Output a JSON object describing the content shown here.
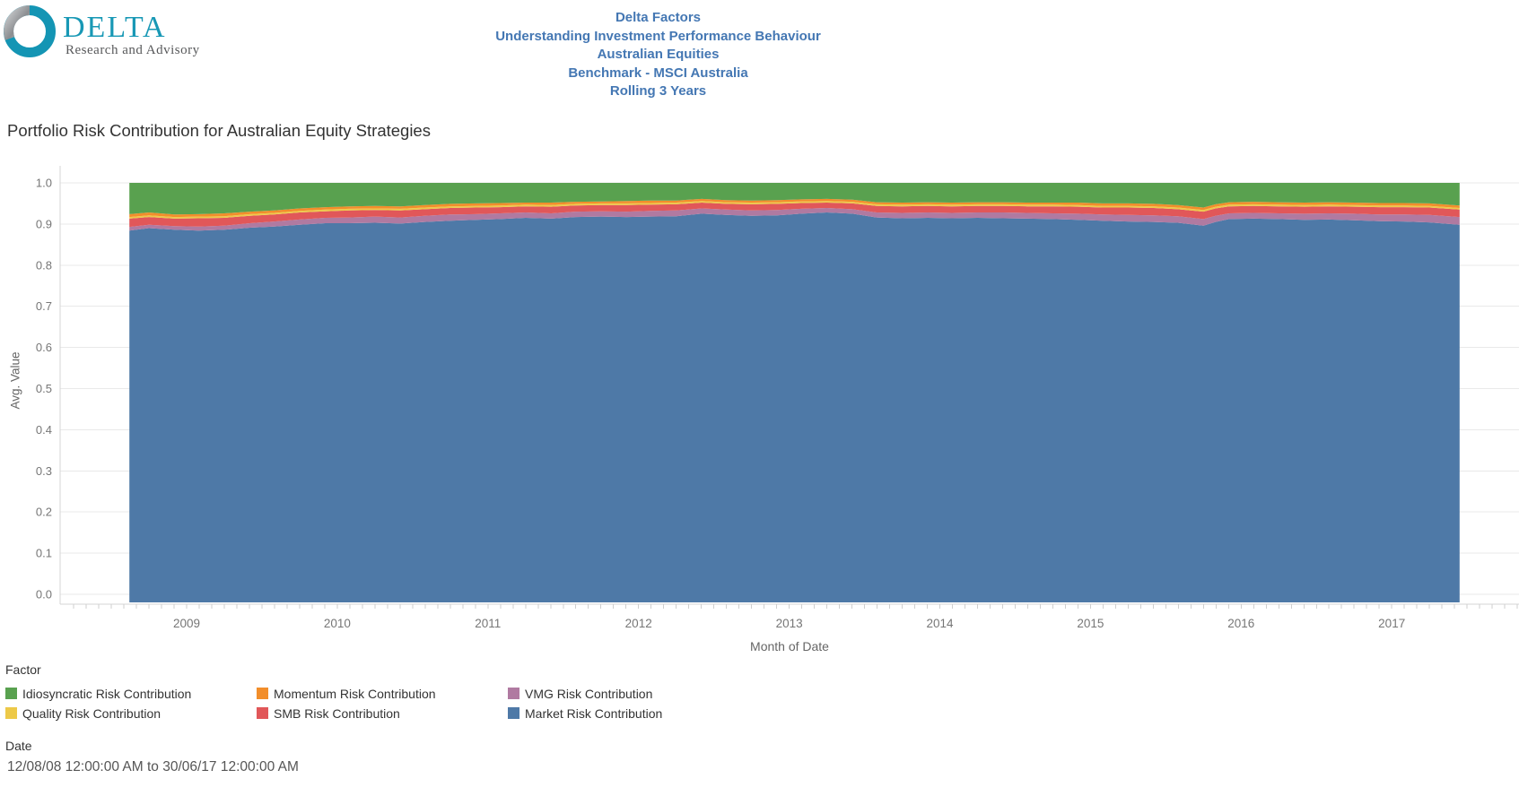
{
  "logo": {
    "brand": "DELTA",
    "tagline": "Research and Advisory",
    "teal": "#1898b5",
    "gray": "#97999c"
  },
  "header": {
    "lines": [
      "Delta Factors",
      "Understanding Investment Performance Behaviour",
      "Australian Equities",
      "Benchmark - MSCI Australia",
      "Rolling 3 Years"
    ],
    "color": "#4477b3"
  },
  "chart": {
    "title": "Portfolio Risk Contribution for Australian Equity Strategies",
    "y_axis_label": "Avg. Value",
    "x_axis_label": "Month of Date"
  },
  "legend": {
    "title": "Factor",
    "items": [
      {
        "label": "Idiosyncratic Risk Contribution",
        "color": "#59a14f"
      },
      {
        "label": "Momentum Risk Contribution",
        "color": "#f28e2b"
      },
      {
        "label": "VMG Risk Contribution",
        "color": "#b07aa1"
      },
      {
        "label": "Quality Risk Contribution",
        "color": "#edc948"
      },
      {
        "label": "SMB Risk Contribution",
        "color": "#e15759"
      },
      {
        "label": "Market Risk Contribution",
        "color": "#4e79a7"
      }
    ]
  },
  "date_filter": {
    "title": "Date",
    "value": "12/08/08 12:00:00 AM to 30/06/17 12:00:00 AM"
  },
  "chart_data": {
    "type": "area",
    "stacked": true,
    "normalized": true,
    "title": "Portfolio Risk Contribution for Australian Equity Strategies",
    "xlabel": "Month of Date",
    "ylabel": "Avg. Value",
    "ylim": [
      0.0,
      1.0
    ],
    "xlim": [
      2008.2,
      2017.8
    ],
    "grid": true,
    "legend_position": "bottom",
    "yticks": [
      "0.0",
      "0.1",
      "0.2",
      "0.3",
      "0.4",
      "0.5",
      "0.6",
      "0.7",
      "0.8",
      "0.9",
      "1.0"
    ],
    "xticks": [
      2009,
      2010,
      2011,
      2012,
      2013,
      2014,
      2015,
      2016,
      2017
    ],
    "x": [
      2008.62,
      2008.75,
      2008.92,
      2009.08,
      2009.25,
      2009.42,
      2009.58,
      2009.75,
      2009.92,
      2010.08,
      2010.25,
      2010.42,
      2010.58,
      2010.75,
      2010.92,
      2011.08,
      2011.25,
      2011.42,
      2011.58,
      2011.75,
      2011.92,
      2012.08,
      2012.25,
      2012.42,
      2012.58,
      2012.75,
      2012.92,
      2013.08,
      2013.25,
      2013.42,
      2013.58,
      2013.75,
      2013.92,
      2014.08,
      2014.25,
      2014.42,
      2014.58,
      2014.75,
      2014.92,
      2015.08,
      2015.25,
      2015.42,
      2015.58,
      2015.75,
      2015.83,
      2015.92,
      2016.08,
      2016.25,
      2016.42,
      2016.58,
      2016.75,
      2016.92,
      2017.08,
      2017.25,
      2017.45
    ],
    "series": [
      {
        "name": "Market Risk Contribution",
        "color": "#4e79a7",
        "values": [
          0.884,
          0.89,
          0.886,
          0.884,
          0.886,
          0.891,
          0.894,
          0.898,
          0.902,
          0.902,
          0.903,
          0.901,
          0.905,
          0.908,
          0.91,
          0.912,
          0.915,
          0.913,
          0.917,
          0.918,
          0.917,
          0.918,
          0.919,
          0.925,
          0.922,
          0.92,
          0.921,
          0.925,
          0.928,
          0.925,
          0.916,
          0.914,
          0.915,
          0.914,
          0.915,
          0.914,
          0.913,
          0.912,
          0.91,
          0.908,
          0.906,
          0.905,
          0.903,
          0.896,
          0.905,
          0.912,
          0.913,
          0.912,
          0.91,
          0.911,
          0.909,
          0.907,
          0.906,
          0.904,
          0.898
        ]
      },
      {
        "name": "VMG Risk Contribution",
        "color": "#b07aa1",
        "values": [
          0.009,
          0.008,
          0.009,
          0.01,
          0.01,
          0.011,
          0.012,
          0.013,
          0.013,
          0.014,
          0.015,
          0.015,
          0.015,
          0.015,
          0.014,
          0.014,
          0.013,
          0.013,
          0.013,
          0.013,
          0.013,
          0.014,
          0.014,
          0.013,
          0.013,
          0.013,
          0.013,
          0.012,
          0.011,
          0.011,
          0.012,
          0.013,
          0.013,
          0.013,
          0.013,
          0.014,
          0.014,
          0.014,
          0.015,
          0.015,
          0.016,
          0.016,
          0.016,
          0.016,
          0.015,
          0.014,
          0.014,
          0.014,
          0.015,
          0.015,
          0.016,
          0.016,
          0.017,
          0.018,
          0.019
        ]
      },
      {
        "name": "SMB Risk Contribution",
        "color": "#e15759",
        "values": [
          0.02,
          0.019,
          0.018,
          0.02,
          0.019,
          0.018,
          0.017,
          0.017,
          0.016,
          0.017,
          0.016,
          0.017,
          0.016,
          0.016,
          0.016,
          0.015,
          0.015,
          0.016,
          0.015,
          0.015,
          0.016,
          0.015,
          0.015,
          0.014,
          0.014,
          0.015,
          0.015,
          0.014,
          0.013,
          0.014,
          0.016,
          0.016,
          0.016,
          0.016,
          0.016,
          0.016,
          0.016,
          0.017,
          0.017,
          0.017,
          0.018,
          0.018,
          0.017,
          0.018,
          0.018,
          0.017,
          0.017,
          0.017,
          0.017,
          0.017,
          0.017,
          0.018,
          0.018,
          0.018,
          0.018
        ]
      },
      {
        "name": "Quality Risk Contribution",
        "color": "#edc948",
        "values": [
          0.004,
          0.004,
          0.004,
          0.004,
          0.004,
          0.004,
          0.004,
          0.004,
          0.004,
          0.004,
          0.004,
          0.004,
          0.004,
          0.004,
          0.004,
          0.004,
          0.004,
          0.004,
          0.004,
          0.004,
          0.004,
          0.004,
          0.004,
          0.004,
          0.004,
          0.004,
          0.004,
          0.004,
          0.004,
          0.004,
          0.004,
          0.004,
          0.004,
          0.004,
          0.004,
          0.004,
          0.004,
          0.004,
          0.004,
          0.004,
          0.004,
          0.004,
          0.004,
          0.004,
          0.004,
          0.004,
          0.004,
          0.004,
          0.004,
          0.004,
          0.004,
          0.004,
          0.004,
          0.004,
          0.004
        ]
      },
      {
        "name": "Momentum Risk Contribution",
        "color": "#f28e2b",
        "values": [
          0.007,
          0.007,
          0.006,
          0.006,
          0.007,
          0.006,
          0.006,
          0.006,
          0.006,
          0.006,
          0.006,
          0.006,
          0.006,
          0.006,
          0.006,
          0.006,
          0.005,
          0.006,
          0.005,
          0.005,
          0.006,
          0.006,
          0.005,
          0.005,
          0.005,
          0.005,
          0.005,
          0.005,
          0.005,
          0.005,
          0.005,
          0.005,
          0.005,
          0.005,
          0.005,
          0.005,
          0.005,
          0.005,
          0.006,
          0.006,
          0.006,
          0.006,
          0.006,
          0.006,
          0.006,
          0.006,
          0.006,
          0.006,
          0.006,
          0.006,
          0.006,
          0.006,
          0.006,
          0.006,
          0.006
        ]
      },
      {
        "name": "Idiosyncratic Risk Contribution",
        "color": "#59a14f",
        "values": [
          0.076,
          0.072,
          0.077,
          0.076,
          0.074,
          0.07,
          0.067,
          0.062,
          0.059,
          0.057,
          0.056,
          0.057,
          0.054,
          0.051,
          0.05,
          0.049,
          0.048,
          0.048,
          0.046,
          0.045,
          0.044,
          0.043,
          0.043,
          0.039,
          0.042,
          0.043,
          0.042,
          0.04,
          0.039,
          0.041,
          0.047,
          0.048,
          0.047,
          0.048,
          0.047,
          0.047,
          0.048,
          0.048,
          0.048,
          0.05,
          0.05,
          0.051,
          0.054,
          0.06,
          0.052,
          0.047,
          0.046,
          0.047,
          0.048,
          0.047,
          0.048,
          0.049,
          0.049,
          0.05,
          0.055
        ]
      }
    ]
  }
}
